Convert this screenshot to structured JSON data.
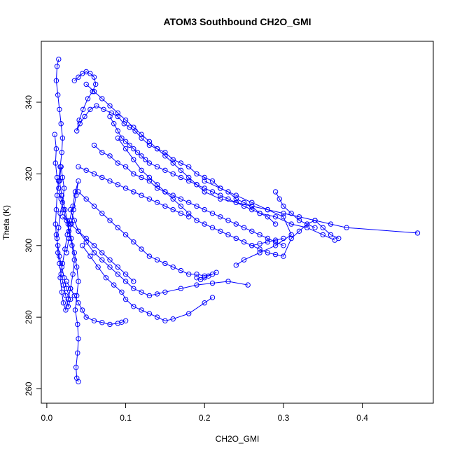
{
  "chart_data": {
    "type": "scatter",
    "title": "ATOM3 Southbound CH2O_GMI",
    "xlabel": "CH2O_GMI",
    "ylabel": "Theta (K)",
    "xlim": [
      -0.007,
      0.49
    ],
    "ylim": [
      256,
      357
    ],
    "xticks": [
      0.0,
      0.1,
      0.2,
      0.3,
      0.4
    ],
    "xtick_labels": [
      "0.0",
      "0.1",
      "0.2",
      "0.3",
      "0.4"
    ],
    "yticks": [
      260,
      280,
      300,
      320,
      340
    ],
    "ytick_labels": [
      "260",
      "280",
      "300",
      "320",
      "340"
    ],
    "grid": false,
    "legend": "none",
    "series_color": "#0000ff",
    "marker": "open-circle",
    "connected": true,
    "series": [
      {
        "x": [
          0.015,
          0.013,
          0.012,
          0.014,
          0.016,
          0.018,
          0.02,
          0.019,
          0.017,
          0.015,
          0.013,
          0.012,
          0.011,
          0.012,
          0.014,
          0.016,
          0.019,
          0.022,
          0.025,
          0.03,
          0.027,
          0.024,
          0.021,
          0.018,
          0.016,
          0.014,
          0.013,
          0.015,
          0.017,
          0.02,
          0.022,
          0.02,
          0.018,
          0.016,
          0.019,
          0.023,
          0.027,
          0.031,
          0.035,
          0.038,
          0.04,
          0.038,
          0.036,
          0.039,
          0.04,
          0.039,
          0.037,
          0.038,
          0.04
        ],
        "y": [
          352,
          350,
          346,
          342,
          338,
          334,
          330,
          326,
          322,
          318,
          314,
          310,
          306,
          303,
          300,
          297,
          294,
          291,
          288,
          285,
          283,
          286,
          289,
          292,
          295,
          298,
          302,
          305,
          309,
          312,
          316,
          319,
          322,
          318,
          314,
          310,
          306,
          302,
          298,
          294,
          290,
          286,
          282,
          278,
          274,
          270,
          266,
          263,
          262
        ]
      },
      {
        "x": [
          0.01,
          0.012,
          0.011,
          0.013,
          0.015,
          0.018,
          0.021,
          0.025,
          0.028,
          0.032,
          0.035,
          0.033,
          0.03,
          0.027,
          0.024,
          0.021,
          0.019,
          0.017,
          0.02,
          0.023,
          0.026,
          0.029,
          0.033,
          0.036,
          0.04,
          0.037,
          0.034,
          0.031,
          0.028,
          0.025
        ],
        "y": [
          331,
          327,
          323,
          319,
          316,
          313,
          310,
          307,
          304,
          300,
          296,
          292,
          288,
          285,
          282,
          284,
          287,
          291,
          295,
          299,
          303,
          307,
          311,
          315,
          318,
          314,
          310,
          306,
          302,
          298
        ]
      },
      {
        "x": [
          0.035,
          0.04,
          0.045,
          0.05,
          0.055,
          0.06,
          0.062,
          0.058,
          0.052,
          0.046,
          0.041,
          0.038,
          0.042,
          0.048,
          0.055,
          0.063,
          0.072,
          0.082,
          0.09,
          0.098,
          0.105,
          0.112,
          0.12,
          0.13,
          0.14,
          0.15,
          0.16,
          0.17,
          0.18,
          0.19,
          0.2,
          0.21,
          0.22,
          0.23,
          0.24,
          0.25,
          0.26,
          0.27,
          0.28,
          0.29
        ],
        "y": [
          346,
          347,
          348,
          348.5,
          348,
          347,
          345,
          343,
          341,
          338,
          335,
          332,
          334,
          336,
          338,
          339,
          338,
          337,
          336,
          334,
          333,
          332,
          330,
          328,
          327,
          326,
          324,
          323,
          322,
          320,
          319,
          318,
          316,
          315,
          313,
          312,
          311,
          309,
          308,
          306
        ]
      },
      {
        "x": [
          0.05,
          0.06,
          0.07,
          0.08,
          0.09,
          0.1,
          0.11,
          0.12,
          0.13,
          0.14,
          0.15,
          0.16,
          0.17,
          0.18,
          0.19,
          0.2,
          0.22,
          0.24,
          0.26,
          0.28,
          0.3,
          0.32,
          0.34,
          0.36,
          0.38,
          0.47
        ],
        "y": [
          345,
          343,
          341,
          339,
          337,
          335,
          333,
          331,
          329,
          327,
          325,
          323,
          321,
          319,
          317,
          315,
          313,
          312,
          311,
          310,
          309,
          308,
          307,
          306,
          305,
          303.5
        ]
      },
      {
        "x": [
          0.08,
          0.085,
          0.09,
          0.095,
          0.1,
          0.105,
          0.11,
          0.115,
          0.12,
          0.125,
          0.13,
          0.14,
          0.15,
          0.16,
          0.17,
          0.18,
          0.19,
          0.2,
          0.21,
          0.22,
          0.23,
          0.24,
          0.25,
          0.26,
          0.27,
          0.29,
          0.31,
          0.33,
          0.35,
          0.365
        ],
        "y": [
          336,
          334,
          332,
          330,
          329,
          328,
          327,
          326,
          325,
          324,
          323,
          322,
          321,
          320,
          319,
          318,
          317,
          316,
          315,
          314,
          313,
          312,
          311,
          310,
          309,
          308,
          306,
          305,
          303,
          301.5
        ]
      },
      {
        "x": [
          0.09,
          0.1,
          0.11,
          0.12,
          0.13,
          0.14,
          0.15,
          0.16,
          0.17,
          0.18,
          0.19,
          0.2,
          0.21,
          0.22,
          0.23,
          0.24,
          0.25,
          0.26,
          0.27,
          0.28,
          0.29,
          0.3
        ],
        "y": [
          330,
          327,
          324,
          321,
          319,
          317,
          315,
          313,
          311,
          309,
          307,
          306,
          305,
          304,
          303,
          302,
          301,
          300,
          300.5,
          301,
          301.5,
          302
        ]
      },
      {
        "x": [
          0.04,
          0.05,
          0.06,
          0.07,
          0.08,
          0.09,
          0.1,
          0.11,
          0.12,
          0.13,
          0.14,
          0.15,
          0.16,
          0.17,
          0.18,
          0.19,
          0.2,
          0.21,
          0.215,
          0.205,
          0.2,
          0.195,
          0.19
        ],
        "y": [
          315,
          313,
          311,
          309,
          307,
          305,
          303,
          301,
          299,
          297,
          296,
          295,
          294,
          293,
          292,
          292,
          291.5,
          292,
          292.5,
          291.5,
          291,
          290.5,
          291
        ]
      },
      {
        "x": [
          0.03,
          0.035,
          0.04,
          0.05,
          0.06,
          0.07,
          0.08,
          0.09,
          0.1,
          0.11,
          0.12,
          0.13,
          0.14,
          0.15,
          0.17,
          0.19,
          0.21,
          0.23,
          0.255
        ],
        "y": [
          310,
          307,
          304,
          301,
          298,
          296,
          294,
          292,
          290,
          288,
          287,
          286,
          286.5,
          287,
          288,
          289,
          289.5,
          290,
          289
        ]
      },
      {
        "x": [
          0.045,
          0.055,
          0.065,
          0.075,
          0.085,
          0.095,
          0.1,
          0.11,
          0.12,
          0.13,
          0.14,
          0.15,
          0.16,
          0.18,
          0.2,
          0.21
        ],
        "y": [
          300,
          297,
          294,
          291,
          289,
          287,
          285,
          283,
          282,
          281,
          280,
          279,
          279.5,
          281,
          284,
          285.5
        ]
      },
      {
        "x": [
          0.04,
          0.05,
          0.06,
          0.07,
          0.08,
          0.09,
          0.1,
          0.11,
          0.12,
          0.13,
          0.14,
          0.15,
          0.16,
          0.17,
          0.18
        ],
        "y": [
          322,
          321,
          320,
          319,
          318,
          317,
          316,
          315,
          314,
          313,
          312,
          311,
          310,
          309,
          308
        ]
      },
      {
        "x": [
          0.06,
          0.07,
          0.08,
          0.09,
          0.1,
          0.11,
          0.12,
          0.13,
          0.14,
          0.15,
          0.16,
          0.17,
          0.18,
          0.19,
          0.2,
          0.21,
          0.22,
          0.23,
          0.24,
          0.25,
          0.26,
          0.27,
          0.28,
          0.29,
          0.3
        ],
        "y": [
          328,
          326,
          325,
          323,
          322,
          320,
          319,
          318,
          316,
          315,
          314,
          313,
          312,
          311,
          310,
          309,
          308,
          307,
          306,
          305,
          304,
          303,
          302,
          301,
          300
        ]
      },
      {
        "x": [
          0.02,
          0.03,
          0.04,
          0.05,
          0.06,
          0.07,
          0.08,
          0.09,
          0.1,
          0.11
        ],
        "y": [
          308,
          306,
          304,
          302,
          300,
          298,
          296,
          294,
          292,
          290
        ]
      },
      {
        "x": [
          0.025,
          0.03,
          0.035,
          0.04,
          0.045,
          0.05,
          0.06,
          0.07,
          0.08,
          0.09,
          0.095,
          0.1
        ],
        "y": [
          290,
          288,
          286,
          284,
          282,
          280,
          279,
          278.5,
          278,
          278.3,
          278.6,
          279
        ]
      },
      {
        "x": [
          0.2,
          0.22,
          0.24,
          0.26,
          0.28,
          0.3,
          0.31,
          0.29,
          0.27,
          0.25,
          0.24
        ],
        "y": [
          318,
          316,
          314,
          312,
          310,
          308,
          303,
          300,
          298,
          296,
          294.5
        ]
      },
      {
        "x": [
          0.26,
          0.27,
          0.28,
          0.29,
          0.3,
          0.31,
          0.32,
          0.33,
          0.34,
          0.35,
          0.36,
          0.37
        ],
        "y": [
          300,
          299,
          298,
          297.5,
          297,
          302,
          304,
          306,
          307,
          305,
          303,
          302
        ]
      },
      {
        "x": [
          0.29,
          0.295,
          0.3,
          0.31,
          0.32,
          0.33,
          0.34
        ],
        "y": [
          315,
          313,
          311,
          309,
          307,
          306,
          305
        ]
      }
    ]
  }
}
